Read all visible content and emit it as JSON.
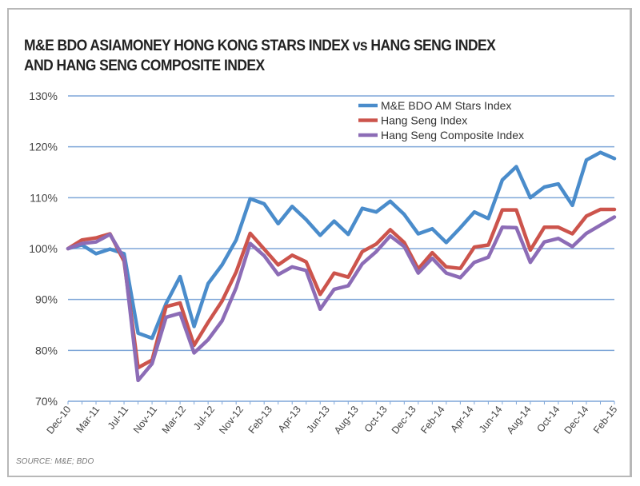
{
  "chart_data": {
    "type": "line",
    "title_lines": [
      "M&E BDO ASIAMONEY HONG KONG STARS INDEX vs HANG SENG INDEX",
      "AND HANG SENG COMPOSITE INDEX"
    ],
    "xlabel": "",
    "ylabel": "",
    "ylim": [
      70,
      130
    ],
    "yticks": [
      "70%",
      "80%",
      "90%",
      "100%",
      "110%",
      "120%",
      "130%"
    ],
    "ytick_values": [
      70,
      80,
      90,
      100,
      110,
      120,
      130
    ],
    "xtick_labels": [
      "Dec-10",
      "Mar-11",
      "Jul-11",
      "Nov-11",
      "Mar-12",
      "Jul-12",
      "Nov-12",
      "Feb-13",
      "Apr-13",
      "Jun-13",
      "Aug-13",
      "Oct-13",
      "Dec-13",
      "Feb-14",
      "Apr-14",
      "Jun-14",
      "Aug-14",
      "Oct-14",
      "Dec-14",
      "Feb-15"
    ],
    "grid": "horizontal",
    "legend_position": "top-right",
    "source": "SOURCE: M&E; BDO",
    "series": [
      {
        "name": "M&E BDO AM Stars Index",
        "color": "#4a8ccb",
        "values": [
          100,
          100.7,
          99,
          99.9,
          99,
          83.4,
          82.4,
          89.2,
          94.5,
          84.7,
          93.1,
          96.8,
          101.7,
          109.8,
          108.8,
          104.9,
          108.3,
          105.7,
          102.6,
          105.4,
          102.8,
          107.9,
          107.2,
          109.3,
          106.7,
          102.9,
          103.9,
          101.2,
          104.1,
          107.2,
          105.9,
          113.5,
          116.1,
          110,
          112.1,
          112.7,
          108.5,
          117.4,
          118.9,
          117.7
        ]
      },
      {
        "name": "Hang Seng Index",
        "color": "#cc544c",
        "values": [
          100,
          101.7,
          102.1,
          102.9,
          97.5,
          76.6,
          78.1,
          88.6,
          89.3,
          81,
          85.5,
          89.7,
          95.4,
          103,
          99.9,
          96.8,
          98.7,
          97.4,
          91,
          95.2,
          94.4,
          99.4,
          100.9,
          103.7,
          101.2,
          96,
          99.2,
          96.4,
          96.1,
          100.3,
          100.7,
          107.6,
          107.6,
          99.7,
          104.2,
          104.2,
          102.9,
          106.4,
          107.7,
          107.7
        ]
      },
      {
        "name": "Hang Seng Composite Index",
        "color": "#8c6cb6",
        "values": [
          100,
          101,
          101.3,
          102.8,
          98.1,
          74.1,
          77.4,
          86.5,
          87.3,
          79.5,
          82.1,
          85.8,
          92.3,
          101,
          98.6,
          94.9,
          96.4,
          95.7,
          88.1,
          92,
          92.7,
          97,
          99.4,
          102.5,
          100.4,
          95.2,
          98.1,
          95.2,
          94.3,
          97.3,
          98.3,
          104.2,
          104.1,
          97.3,
          101.3,
          102,
          100.4,
          103,
          104.6,
          106.2
        ]
      }
    ]
  }
}
